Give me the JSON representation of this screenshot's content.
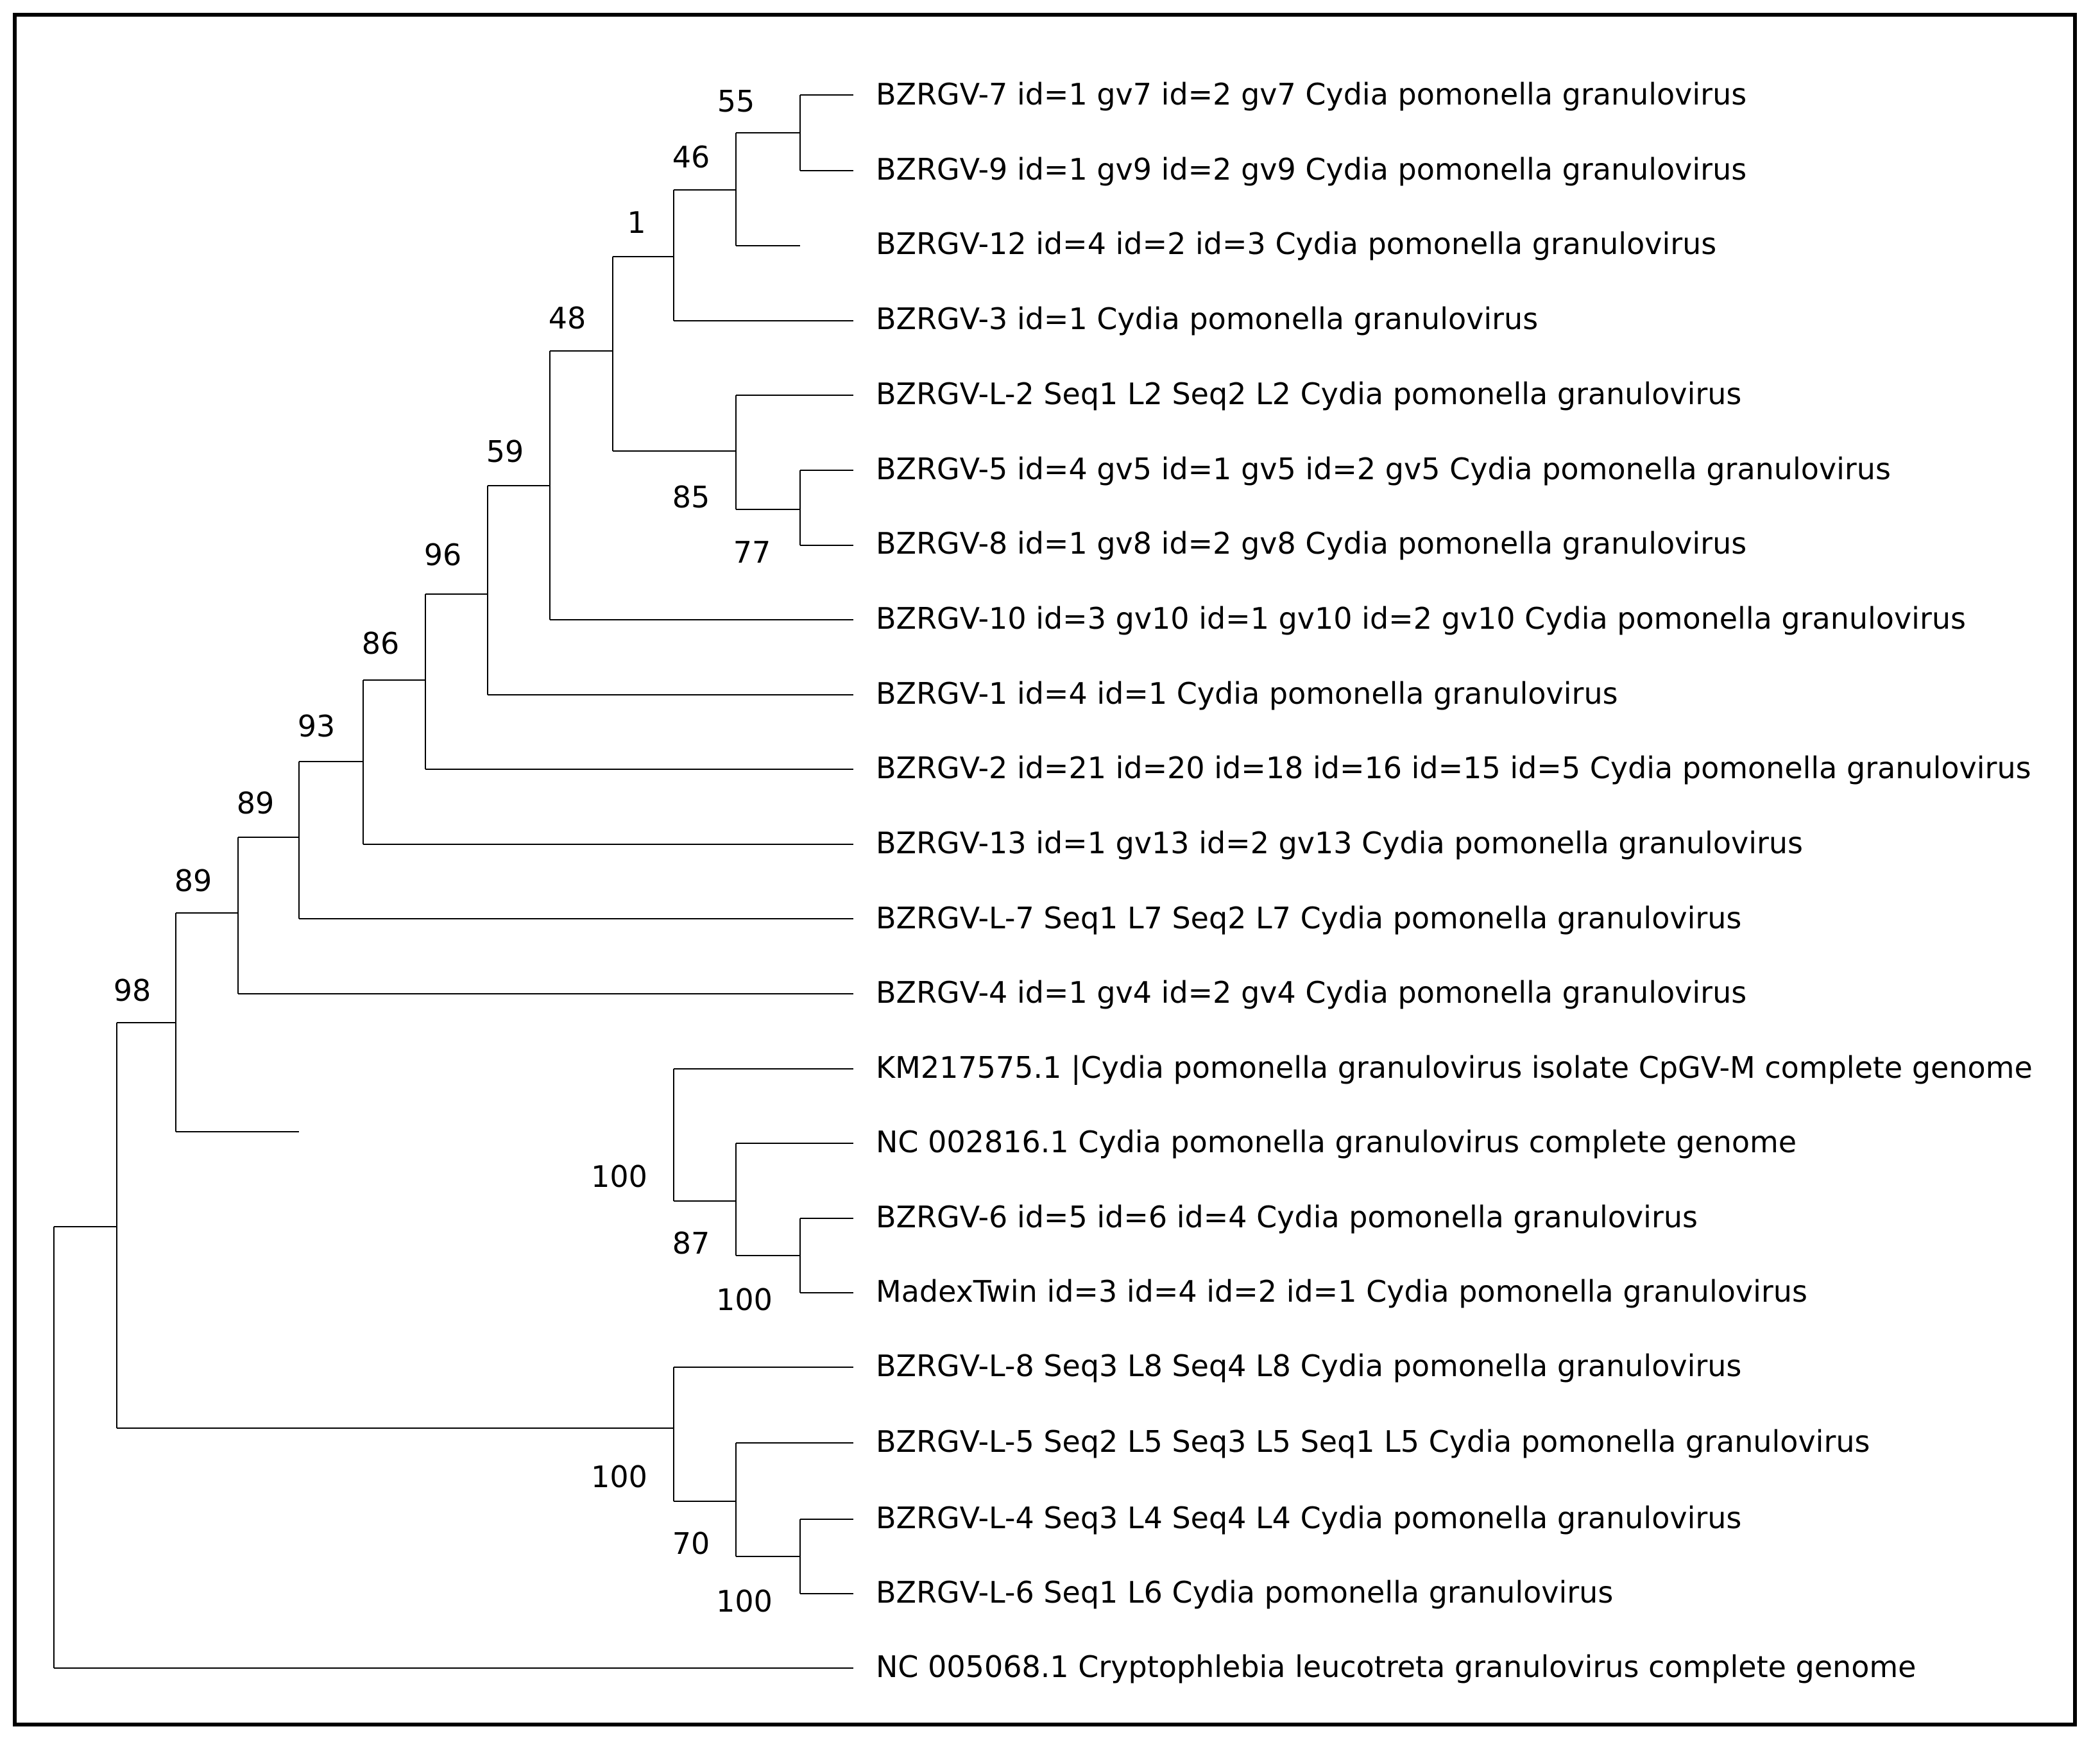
{
  "tree": {
    "type": "phylogenetic-tree",
    "leaves": [
      "BZRGV-7 id=1 gv7 id=2 gv7 Cydia pomonella granulovirus",
      "BZRGV-9 id=1 gv9 id=2 gv9 Cydia pomonella granulovirus",
      "BZRGV-12 id=4 id=2 id=3 Cydia pomonella granulovirus",
      "BZRGV-3 id=1 Cydia pomonella granulovirus",
      "BZRGV-L-2 Seq1 L2 Seq2 L2 Cydia pomonella granulovirus",
      "BZRGV-5 id=4 gv5 id=1 gv5 id=2 gv5 Cydia pomonella granulovirus",
      "BZRGV-8 id=1 gv8 id=2 gv8 Cydia pomonella granulovirus",
      "BZRGV-10 id=3 gv10 id=1 gv10 id=2 gv10 Cydia pomonella granulovirus",
      "BZRGV-1 id=4 id=1 Cydia pomonella granulovirus",
      "BZRGV-2 id=21 id=20 id=18 id=16 id=15 id=5 Cydia pomonella granulovirus",
      "BZRGV-13 id=1 gv13 id=2 gv13 Cydia pomonella granulovirus",
      "BZRGV-L-7 Seq1 L7 Seq2 L7 Cydia pomonella granulovirus",
      "BZRGV-4 id=1 gv4 id=2 gv4 Cydia pomonella granulovirus",
      "KM217575.1 |Cydia pomonella granulovirus isolate CpGV-M complete genome",
      "NC 002816.1 Cydia pomonella granulovirus complete genome",
      "BZRGV-6 id=5 id=6 id=4 Cydia pomonella granulovirus",
      "MadexTwin id=3 id=4 id=2 id=1 Cydia pomonella granulovirus",
      "BZRGV-L-8 Seq3 L8 Seq4 L8 Cydia pomonella granulovirus",
      "BZRGV-L-5 Seq2 L5 Seq3 L5 Seq1 L5 Cydia pomonella granulovirus",
      "BZRGV-L-4 Seq3 L4 Seq4 L4 Cydia pomonella granulovirus",
      "BZRGV-L-6 Seq1 L6 Cydia pomonella granulovirus",
      "NC 005068.1 Cryptophlebia leucotreta granulovirus complete genome"
    ],
    "bootstrap": {
      "n55": "55",
      "n46": "46",
      "n1": "1",
      "n48": "48",
      "n85": "85",
      "n77": "77",
      "n59": "59",
      "n96": "96",
      "n86": "86",
      "n93": "93",
      "n89a": "89",
      "n89b": "89",
      "n98": "98",
      "n100a": "100",
      "n87": "87",
      "n100b": "100",
      "n100c": "100",
      "n70": "70",
      "n100d": "100"
    }
  }
}
